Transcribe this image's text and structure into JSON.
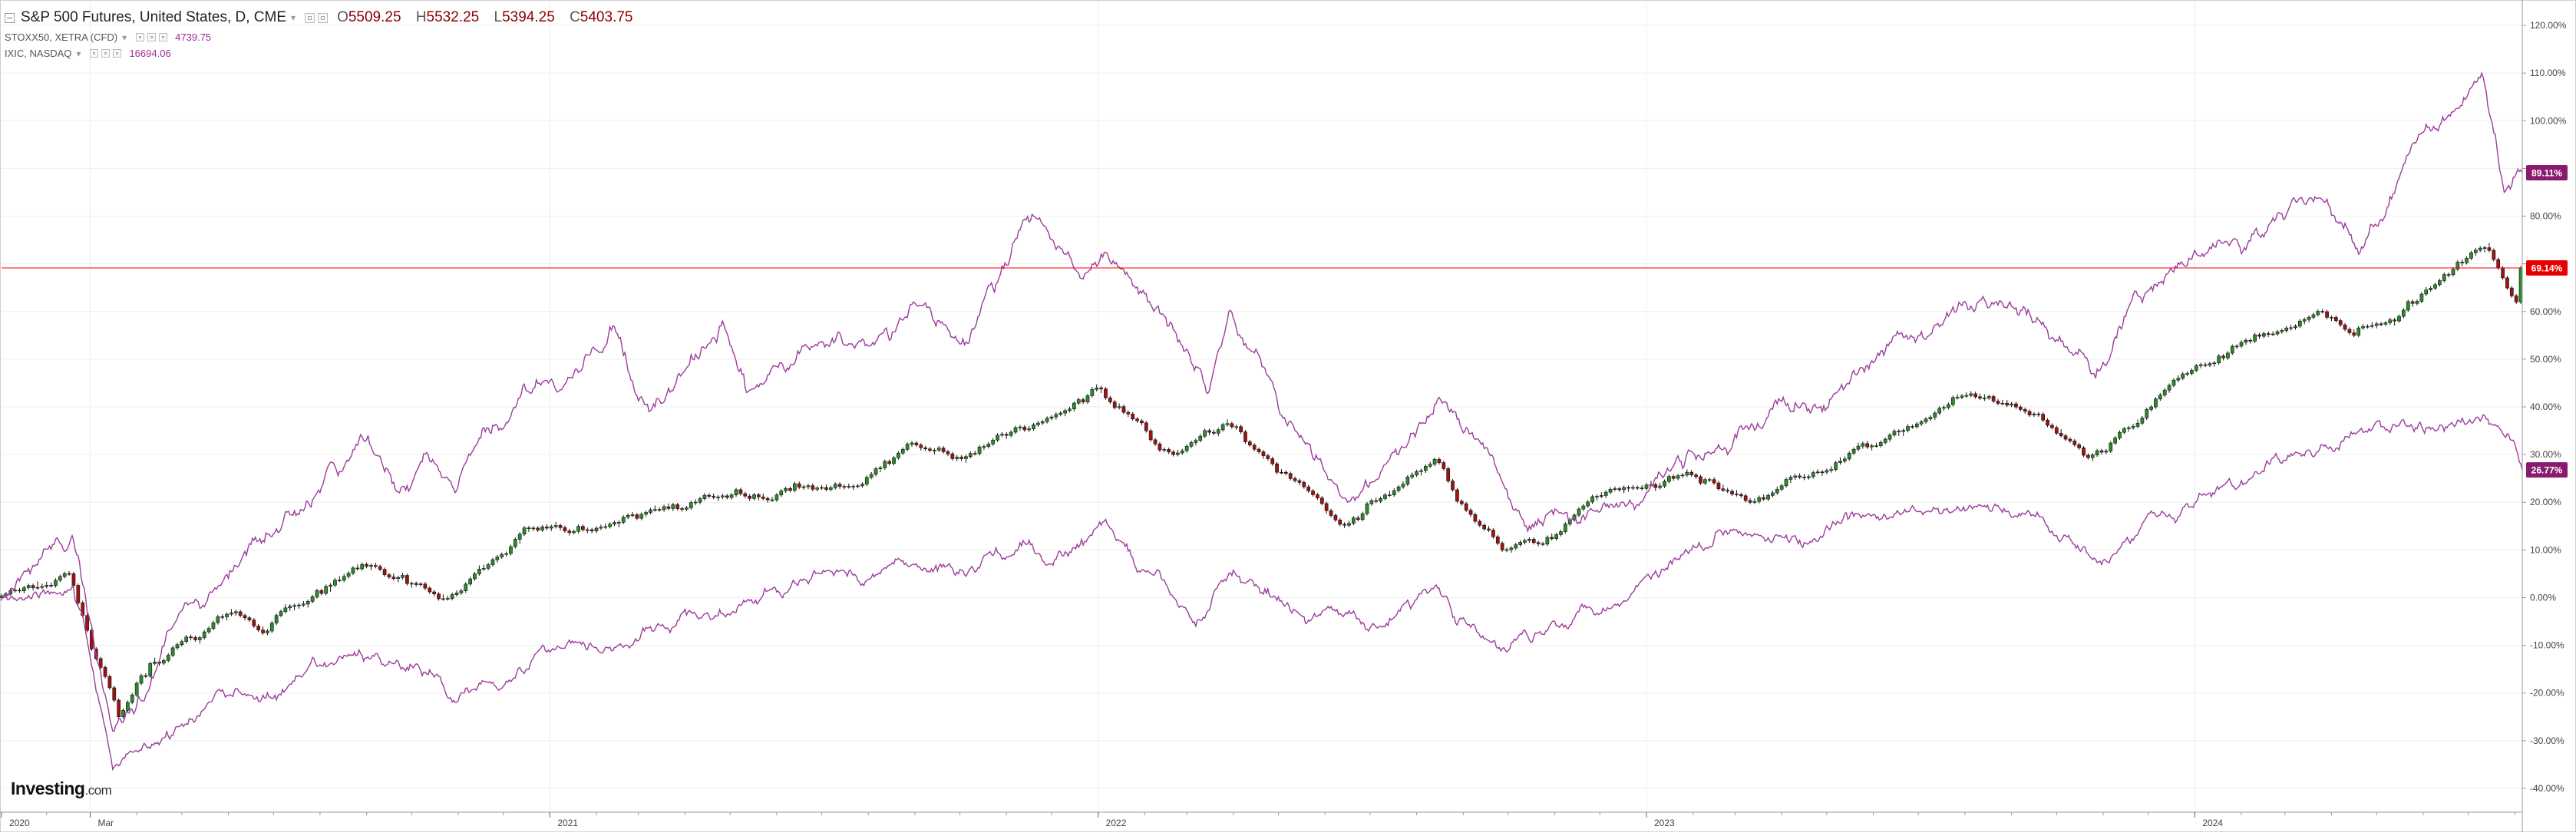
{
  "legend": {
    "main": {
      "symbol": "S&P 500 Futures, United States, D, CME",
      "o_label": "O",
      "o": "5509.25",
      "h_label": "H",
      "h": "5532.25",
      "l_label": "L",
      "l": "5394.25",
      "c_label": "C",
      "c": "5403.75"
    },
    "series": [
      {
        "symbol": "STOXX50, XETRA (CFD)",
        "last": "4739.75"
      },
      {
        "symbol": "IXIC, NASDAQ",
        "last": "16694.06"
      }
    ]
  },
  "brand": {
    "name": "Investing",
    "suffix": ".com"
  },
  "colors": {
    "up": "#2b8c2b",
    "down": "#a11212",
    "compare": "#9b3d9b",
    "price_line": "#ff0000",
    "grid": "#eeeeee",
    "badge_current": "#e60000",
    "badge_compare": "#8a1a6e"
  },
  "chart_data": {
    "type": "line",
    "title": "S&P 500 Futures, United States, D, CME",
    "xlabel": "",
    "ylabel": "",
    "x_range": [
      "2020-01-02",
      "2024-08-06"
    ],
    "x_tick_labels": [
      {
        "label": "2020",
        "date": "2020-01-01"
      },
      {
        "label": "Mar",
        "date": "2020-03-01"
      },
      {
        "label": "2021",
        "date": "2021-01-01"
      },
      {
        "label": "2022",
        "date": "2022-01-01"
      },
      {
        "label": "2023",
        "date": "2023-01-01"
      },
      {
        "label": "2024",
        "date": "2024-01-01"
      }
    ],
    "ylim": [
      -45,
      125
    ],
    "y_tick_values": [
      -40,
      -30,
      -20,
      -10,
      0,
      10,
      20,
      30,
      40,
      50,
      60,
      70,
      80,
      90,
      100,
      110,
      120
    ],
    "y_tick_suffix": "%",
    "current_value_line": 69.14,
    "badges": [
      {
        "label": "89.11%",
        "value": 89.11,
        "kind": "compare"
      },
      {
        "label": "69.14%",
        "value": 69.14,
        "kind": "current"
      },
      {
        "label": "26.77%",
        "value": 26.77,
        "kind": "compare"
      }
    ],
    "series": [
      {
        "name": "S&P 500 Futures, United States, D, CME",
        "style": "candlestick",
        "points": [
          [
            "2020-01-02",
            0
          ],
          [
            "2020-02-19",
            5
          ],
          [
            "2020-03-23",
            -25
          ],
          [
            "2020-04-15",
            -13
          ],
          [
            "2020-06-08",
            -3
          ],
          [
            "2020-06-26",
            -7
          ],
          [
            "2020-08-31",
            7
          ],
          [
            "2020-10-30",
            0
          ],
          [
            "2020-12-31",
            15
          ],
          [
            "2021-03-04",
            17
          ],
          [
            "2021-05-07",
            22
          ],
          [
            "2021-08-31",
            32
          ],
          [
            "2021-09-30",
            29
          ],
          [
            "2021-11-30",
            37
          ],
          [
            "2022-01-03",
            44
          ],
          [
            "2022-02-23",
            30
          ],
          [
            "2022-03-29",
            37
          ],
          [
            "2022-06-16",
            15
          ],
          [
            "2022-08-16",
            29
          ],
          [
            "2022-09-30",
            10
          ],
          [
            "2022-11-30",
            21
          ],
          [
            "2023-02-02",
            26
          ],
          [
            "2023-03-13",
            20
          ],
          [
            "2023-07-31",
            42
          ],
          [
            "2023-10-27",
            29
          ],
          [
            "2023-12-29",
            47
          ],
          [
            "2024-03-28",
            60
          ],
          [
            "2024-04-19",
            55
          ],
          [
            "2024-07-16",
            74
          ],
          [
            "2024-08-05",
            62
          ],
          [
            "2024-08-06",
            69.14
          ]
        ]
      },
      {
        "name": "STOXX50, XETRA (CFD)",
        "style": "line",
        "points": [
          [
            "2020-01-02",
            0
          ],
          [
            "2020-02-19",
            2
          ],
          [
            "2020-03-16",
            -36
          ],
          [
            "2020-05-29",
            -20
          ],
          [
            "2020-09-30",
            -14
          ],
          [
            "2020-10-30",
            -22
          ],
          [
            "2020-12-31",
            -11
          ],
          [
            "2021-03-31",
            -3
          ],
          [
            "2021-06-30",
            5
          ],
          [
            "2021-08-31",
            7
          ],
          [
            "2021-09-30",
            5
          ],
          [
            "2021-11-16",
            12
          ],
          [
            "2021-11-30",
            7
          ],
          [
            "2022-01-05",
            16
          ],
          [
            "2022-03-07",
            -6
          ],
          [
            "2022-03-29",
            5
          ],
          [
            "2022-06-30",
            -7
          ],
          [
            "2022-08-16",
            2
          ],
          [
            "2022-09-29",
            -11
          ],
          [
            "2022-12-30",
            4
          ],
          [
            "2023-01-31",
            10
          ],
          [
            "2023-03-17",
            13
          ],
          [
            "2023-07-31",
            19
          ],
          [
            "2023-10-27",
            8
          ],
          [
            "2023-12-29",
            19
          ],
          [
            "2024-03-28",
            32
          ],
          [
            "2024-05-15",
            36
          ],
          [
            "2024-07-31",
            33
          ],
          [
            "2024-08-06",
            26.77
          ]
        ]
      },
      {
        "name": "IXIC, NASDAQ",
        "style": "line",
        "points": [
          [
            "2020-01-02",
            0
          ],
          [
            "2020-02-19",
            12
          ],
          [
            "2020-03-16",
            -28
          ],
          [
            "2020-04-30",
            -3
          ],
          [
            "2020-09-02",
            34
          ],
          [
            "2020-09-23",
            22
          ],
          [
            "2020-10-12",
            30
          ],
          [
            "2020-10-30",
            22
          ],
          [
            "2020-12-31",
            45
          ],
          [
            "2021-02-12",
            57
          ],
          [
            "2021-03-08",
            39
          ],
          [
            "2021-04-26",
            58
          ],
          [
            "2021-05-12",
            43
          ],
          [
            "2021-08-31",
            62
          ],
          [
            "2021-10-04",
            53
          ],
          [
            "2021-11-19",
            80
          ],
          [
            "2021-12-20",
            67
          ],
          [
            "2022-01-03",
            72
          ],
          [
            "2022-03-14",
            43
          ],
          [
            "2022-03-29",
            60
          ],
          [
            "2022-05-11",
            36
          ],
          [
            "2022-06-16",
            20
          ],
          [
            "2022-08-16",
            42
          ],
          [
            "2022-10-13",
            15
          ],
          [
            "2022-12-28",
            20
          ],
          [
            "2023-02-02",
            30
          ],
          [
            "2023-07-31",
            62
          ],
          [
            "2023-10-27",
            46
          ],
          [
            "2023-12-29",
            71
          ],
          [
            "2024-03-28",
            83
          ],
          [
            "2024-04-19",
            72
          ],
          [
            "2024-07-10",
            110
          ],
          [
            "2024-07-25",
            85
          ],
          [
            "2024-08-06",
            89.11
          ]
        ]
      }
    ]
  }
}
